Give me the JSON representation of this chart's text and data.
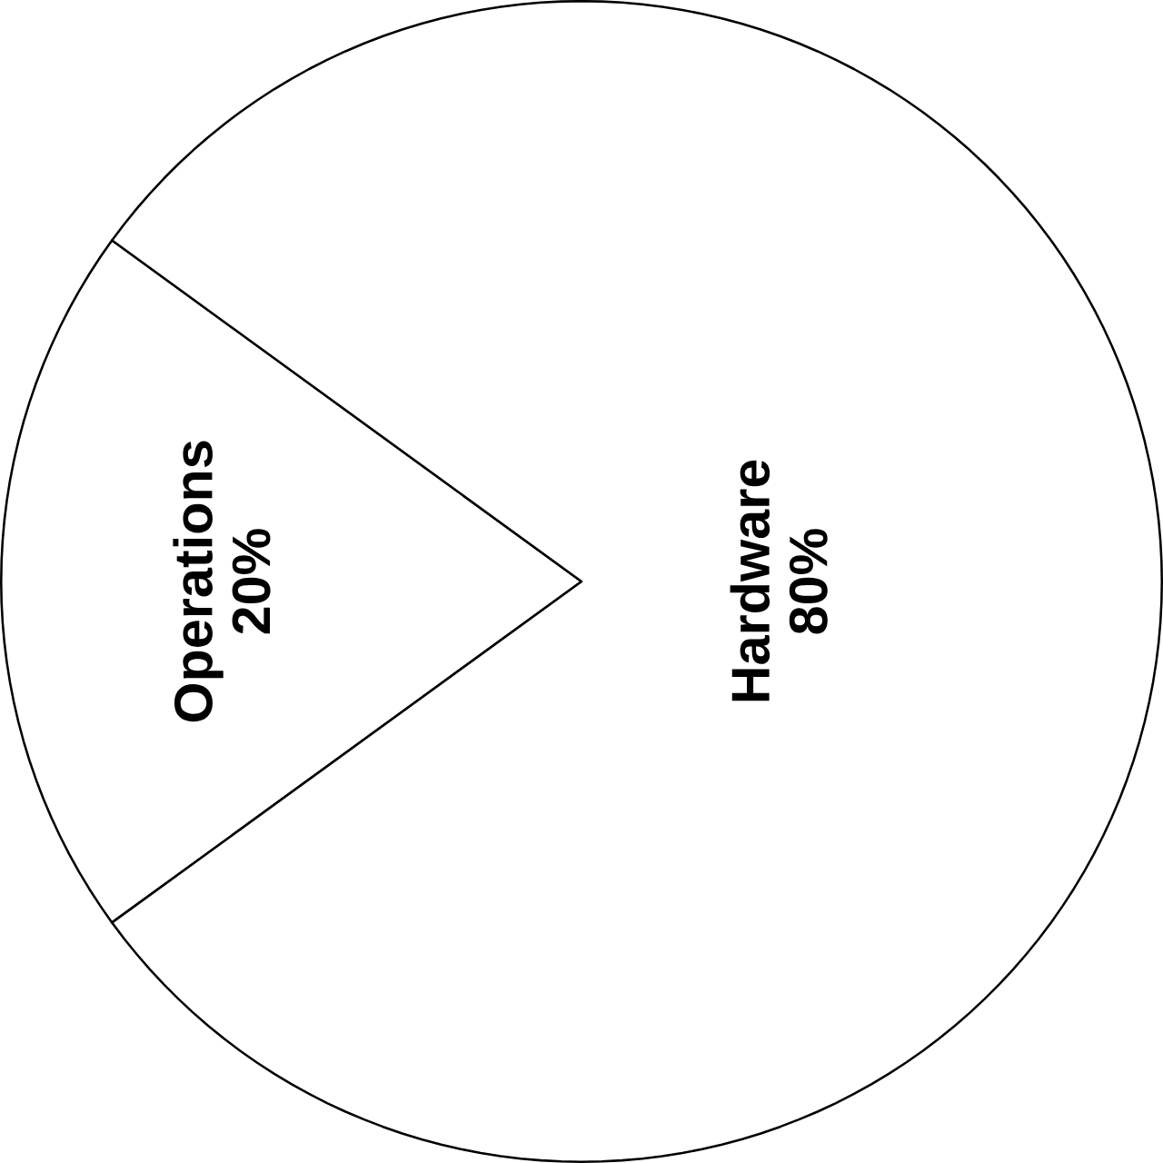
{
  "chart_data": {
    "type": "pie",
    "categories": [
      "Operations",
      "Hardware"
    ],
    "values": [
      20,
      80
    ],
    "colors": [
      "#ffffff",
      "#ffffff"
    ],
    "value_labels": [
      "20%",
      "80%"
    ]
  }
}
